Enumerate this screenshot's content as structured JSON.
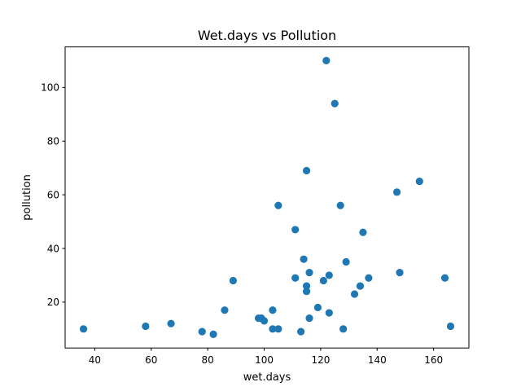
{
  "chart_data": {
    "type": "scatter",
    "title": "Wet.days vs Pollution",
    "xlabel": "wet.days",
    "ylabel": "pollution",
    "xlim": [
      29.5,
      172.5
    ],
    "ylim": [
      2.9,
      115.1
    ],
    "xticks": [
      40,
      60,
      80,
      100,
      120,
      140,
      160
    ],
    "yticks": [
      20,
      40,
      60,
      80,
      100
    ],
    "grid": false,
    "marker_color": "#1f77b4",
    "points": [
      {
        "x": 36,
        "y": 10
      },
      {
        "x": 58,
        "y": 11
      },
      {
        "x": 67,
        "y": 12
      },
      {
        "x": 78,
        "y": 9
      },
      {
        "x": 82,
        "y": 8
      },
      {
        "x": 86,
        "y": 17
      },
      {
        "x": 89,
        "y": 28
      },
      {
        "x": 98,
        "y": 14
      },
      {
        "x": 99,
        "y": 14
      },
      {
        "x": 100,
        "y": 13
      },
      {
        "x": 103,
        "y": 17
      },
      {
        "x": 103,
        "y": 10
      },
      {
        "x": 105,
        "y": 10
      },
      {
        "x": 105,
        "y": 56
      },
      {
        "x": 111,
        "y": 47
      },
      {
        "x": 111,
        "y": 29
      },
      {
        "x": 113,
        "y": 9
      },
      {
        "x": 114,
        "y": 36
      },
      {
        "x": 115,
        "y": 69
      },
      {
        "x": 115,
        "y": 26
      },
      {
        "x": 115,
        "y": 24
      },
      {
        "x": 116,
        "y": 31
      },
      {
        "x": 116,
        "y": 14
      },
      {
        "x": 119,
        "y": 18
      },
      {
        "x": 121,
        "y": 28
      },
      {
        "x": 122,
        "y": 110
      },
      {
        "x": 123,
        "y": 30
      },
      {
        "x": 123,
        "y": 16
      },
      {
        "x": 125,
        "y": 94
      },
      {
        "x": 127,
        "y": 56
      },
      {
        "x": 128,
        "y": 10
      },
      {
        "x": 129,
        "y": 35
      },
      {
        "x": 132,
        "y": 23
      },
      {
        "x": 134,
        "y": 26
      },
      {
        "x": 135,
        "y": 46
      },
      {
        "x": 137,
        "y": 29
      },
      {
        "x": 147,
        "y": 61
      },
      {
        "x": 148,
        "y": 31
      },
      {
        "x": 155,
        "y": 65
      },
      {
        "x": 164,
        "y": 29
      },
      {
        "x": 166,
        "y": 11
      }
    ]
  }
}
